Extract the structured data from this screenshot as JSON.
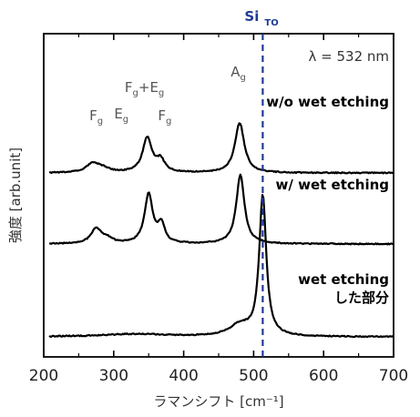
{
  "chart_data": {
    "type": "line",
    "xlabel": "ラマンシフト [cm⁻¹]",
    "ylabel": "強度 [arb.unit]",
    "xlim": [
      200,
      700
    ],
    "xticks": [
      "200",
      "300",
      "400",
      "500",
      "600",
      "700"
    ],
    "y_ticks_shown": false,
    "grid": false,
    "wavelength_label": "λ = 532 nm",
    "reference_line": {
      "x": 513,
      "label": "Si",
      "subscript": "TO",
      "color": "#1f3a93",
      "style": "dashed"
    },
    "peak_annotations": [
      {
        "base": "F",
        "sub": "g",
        "x": 275
      },
      {
        "base": "E",
        "sub": "g",
        "x": 311
      },
      {
        "base": "F",
        "sub": "g",
        "extra_base": "+E",
        "extra_sub": "g",
        "x": 344
      },
      {
        "base": "F",
        "sub": "g",
        "x": 373
      },
      {
        "base": "A",
        "sub": "g",
        "x": 478
      }
    ],
    "series": [
      {
        "name": "w/o wet etching",
        "offset": 1.8,
        "peaks": [
          {
            "x": 270,
            "height": 0.1,
            "width": 11
          },
          {
            "x": 285,
            "height": 0.04,
            "width": 12
          },
          {
            "x": 348,
            "height": 0.38,
            "width": 8
          },
          {
            "x": 367,
            "height": 0.13,
            "width": 7
          },
          {
            "x": 480,
            "height": 0.55,
            "width": 8
          }
        ]
      },
      {
        "name": "w/ wet etching",
        "offset": 1.02,
        "peaks": [
          {
            "x": 275,
            "height": 0.16,
            "width": 9
          },
          {
            "x": 290,
            "height": 0.05,
            "width": 10
          },
          {
            "x": 350,
            "height": 0.54,
            "width": 7
          },
          {
            "x": 368,
            "height": 0.2,
            "width": 6
          },
          {
            "x": 481,
            "height": 0.76,
            "width": 7
          }
        ]
      },
      {
        "name": "wet etching\nした部分",
        "offset": 0.0,
        "peaks": [
          {
            "x": 330,
            "height": 0.03,
            "width": 60
          },
          {
            "x": 480,
            "height": 0.12,
            "width": 18
          },
          {
            "x": 513,
            "height": 1.54,
            "width": 6
          }
        ]
      }
    ]
  }
}
